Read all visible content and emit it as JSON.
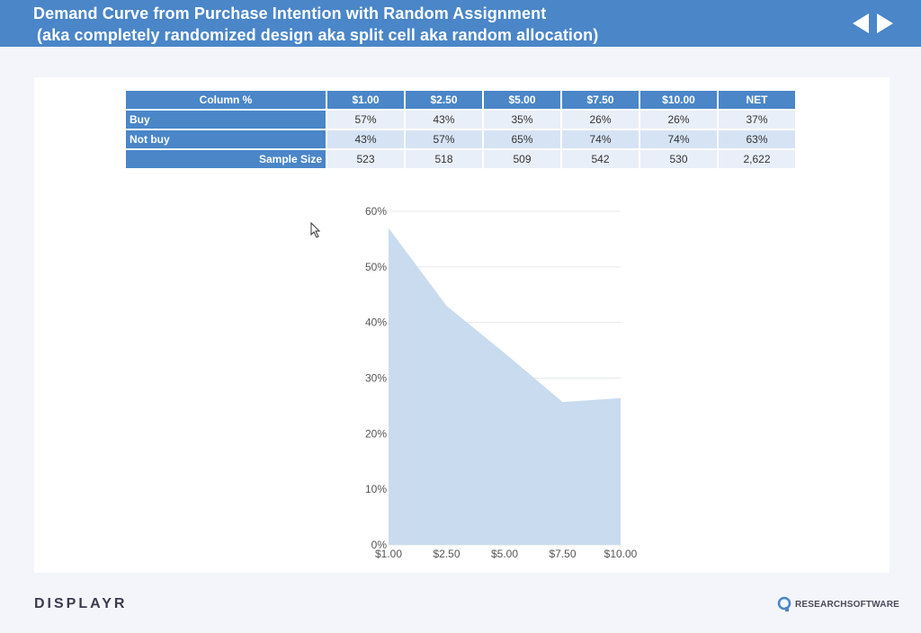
{
  "header": {
    "title_line1": "Demand Curve from Purchase Intention with Random Assignment",
    "title_line2": "(aka completely randomized design aka split cell aka random allocation)"
  },
  "table": {
    "corner": "Column %",
    "columns": [
      "$1.00",
      "$2.50",
      "$5.00",
      "$7.50",
      "$10.00",
      "NET"
    ],
    "rows": [
      {
        "label": "Buy",
        "values": [
          "57%",
          "43%",
          "35%",
          "26%",
          "26%",
          "37%"
        ]
      },
      {
        "label": "Not buy",
        "values": [
          "43%",
          "57%",
          "65%",
          "74%",
          "74%",
          "63%"
        ]
      },
      {
        "label": "Sample Size",
        "values": [
          "523",
          "518",
          "509",
          "542",
          "530",
          "2,622"
        ]
      }
    ]
  },
  "chart_data": {
    "type": "area",
    "categories": [
      "$1.00",
      "$2.50",
      "$5.00",
      "$7.50",
      "$10.00"
    ],
    "series": [
      {
        "values": [
          0.57,
          0.43,
          0.345,
          0.257,
          0.264
        ]
      }
    ],
    "y_ticks": [
      "0%",
      "10%",
      "20%",
      "30%",
      "40%",
      "50%",
      "60%"
    ],
    "ylim": [
      0,
      0.6
    ],
    "grid": true,
    "fill_color": "#c9dbef"
  },
  "footer": {
    "left_logo": "DISPLAYR",
    "right_logo": "RESEARCHSOFTWARE"
  },
  "icons": {
    "prev": "triangle-left-icon",
    "next": "triangle-right-icon",
    "cursor": "mouse-pointer-icon"
  }
}
